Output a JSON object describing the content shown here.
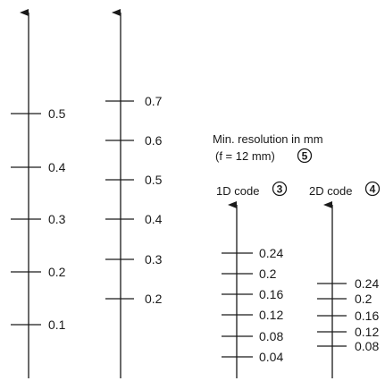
{
  "heading": {
    "line1": "Min. resolution in mm",
    "line2": "(f = 12 mm)",
    "marker": "5"
  },
  "scales": [
    {
      "id": "left-scale-1",
      "ticks": [
        "0.5",
        "0.4",
        "0.3",
        "0.2",
        "0.1"
      ]
    },
    {
      "id": "left-scale-2",
      "ticks": [
        "0.7",
        "0.6",
        "0.5",
        "0.4",
        "0.3",
        "0.2"
      ]
    },
    {
      "id": "code-1d",
      "title": "1D code",
      "marker": "3",
      "ticks": [
        "0.24",
        "0.2",
        "0.16",
        "0.12",
        "0.08",
        "0.04"
      ]
    },
    {
      "id": "code-2d",
      "title": "2D code",
      "marker": "4",
      "ticks": [
        "0.24",
        "0.2",
        "0.16",
        "0.12",
        "0.08"
      ]
    }
  ]
}
